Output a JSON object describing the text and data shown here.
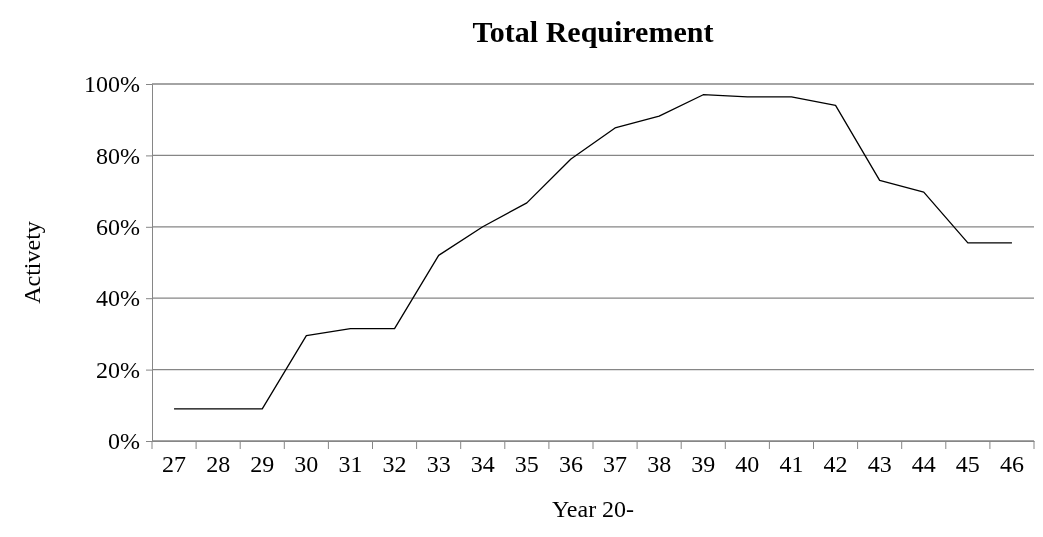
{
  "chart_data": {
    "type": "line",
    "title": "Total Requirement",
    "xlabel": "Year 20-",
    "ylabel": "Activety",
    "categories": [
      "27",
      "28",
      "29",
      "30",
      "31",
      "32",
      "33",
      "34",
      "35",
      "36",
      "37",
      "38",
      "39",
      "40",
      "41",
      "42",
      "43",
      "44",
      "45",
      "46"
    ],
    "series": [
      {
        "color": "#000000",
        "values": [
          9,
          9,
          9,
          29.5,
          31.5,
          31.5,
          52,
          60,
          66.7,
          79,
          87.7,
          91,
          97,
          96.4,
          96.4,
          94,
          73,
          69.7,
          55.5,
          55.5
        ]
      }
    ],
    "ylim": [
      0,
      100
    ],
    "yticks": [
      {
        "value": 0,
        "label": "0%"
      },
      {
        "value": 20,
        "label": "20%"
      },
      {
        "value": 40,
        "label": "40%"
      },
      {
        "value": 60,
        "label": "60%"
      },
      {
        "value": 80,
        "label": "80%"
      },
      {
        "value": 100,
        "label": "100%"
      }
    ],
    "grid": "y",
    "marker": "none",
    "line_style": "solid"
  }
}
